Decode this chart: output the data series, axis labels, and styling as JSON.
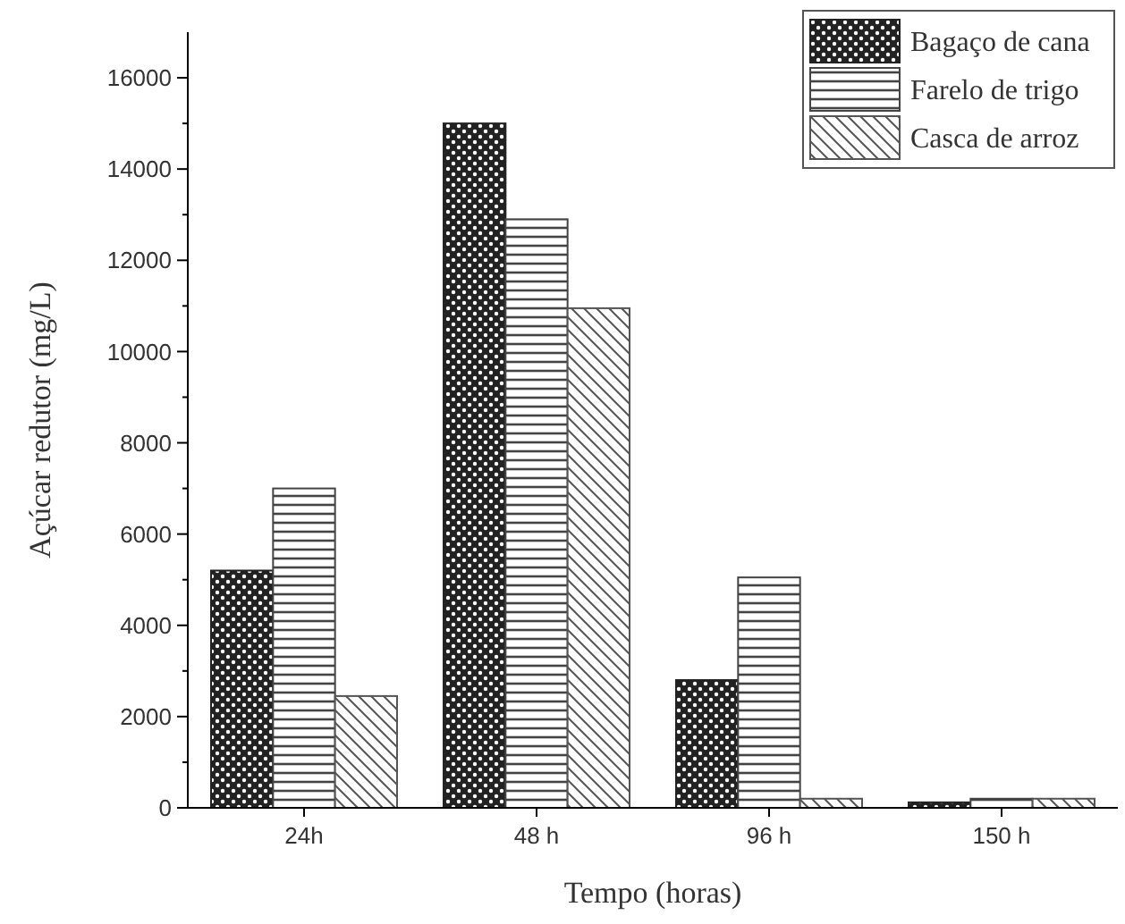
{
  "chart_data": {
    "type": "bar",
    "xlabel": "Tempo (horas)",
    "ylabel": "Açúcar redutor (mg/L)",
    "categories": [
      "24h",
      "48 h",
      "96 h",
      "150 h"
    ],
    "series": [
      {
        "name": "Bagaço de cana",
        "color": "#222222",
        "values": [
          5200,
          15000,
          2800,
          120
        ]
      },
      {
        "name": "Farelo de trigo",
        "color": "#444444",
        "values": [
          7000,
          12900,
          5050,
          200
        ]
      },
      {
        "name": "Casca de arroz",
        "color": "#555555",
        "values": [
          2450,
          10950,
          200,
          200
        ]
      }
    ],
    "ylim": [
      0,
      17000
    ],
    "yticks": [
      0,
      {
        "value": 1000,
        "label": null
      },
      2000,
      {
        "value": 3000,
        "label": null
      },
      4000,
      {
        "value": 5000,
        "label": null
      },
      6000,
      {
        "value": 7000,
        "label": null
      },
      8000,
      {
        "value": 9000,
        "label": null
      },
      10000,
      {
        "value": 11000,
        "label": null
      },
      12000,
      {
        "value": 13000,
        "label": null
      },
      14000,
      {
        "value": 15000,
        "label": null
      },
      16000
    ],
    "grid": false,
    "legend": "top right"
  }
}
